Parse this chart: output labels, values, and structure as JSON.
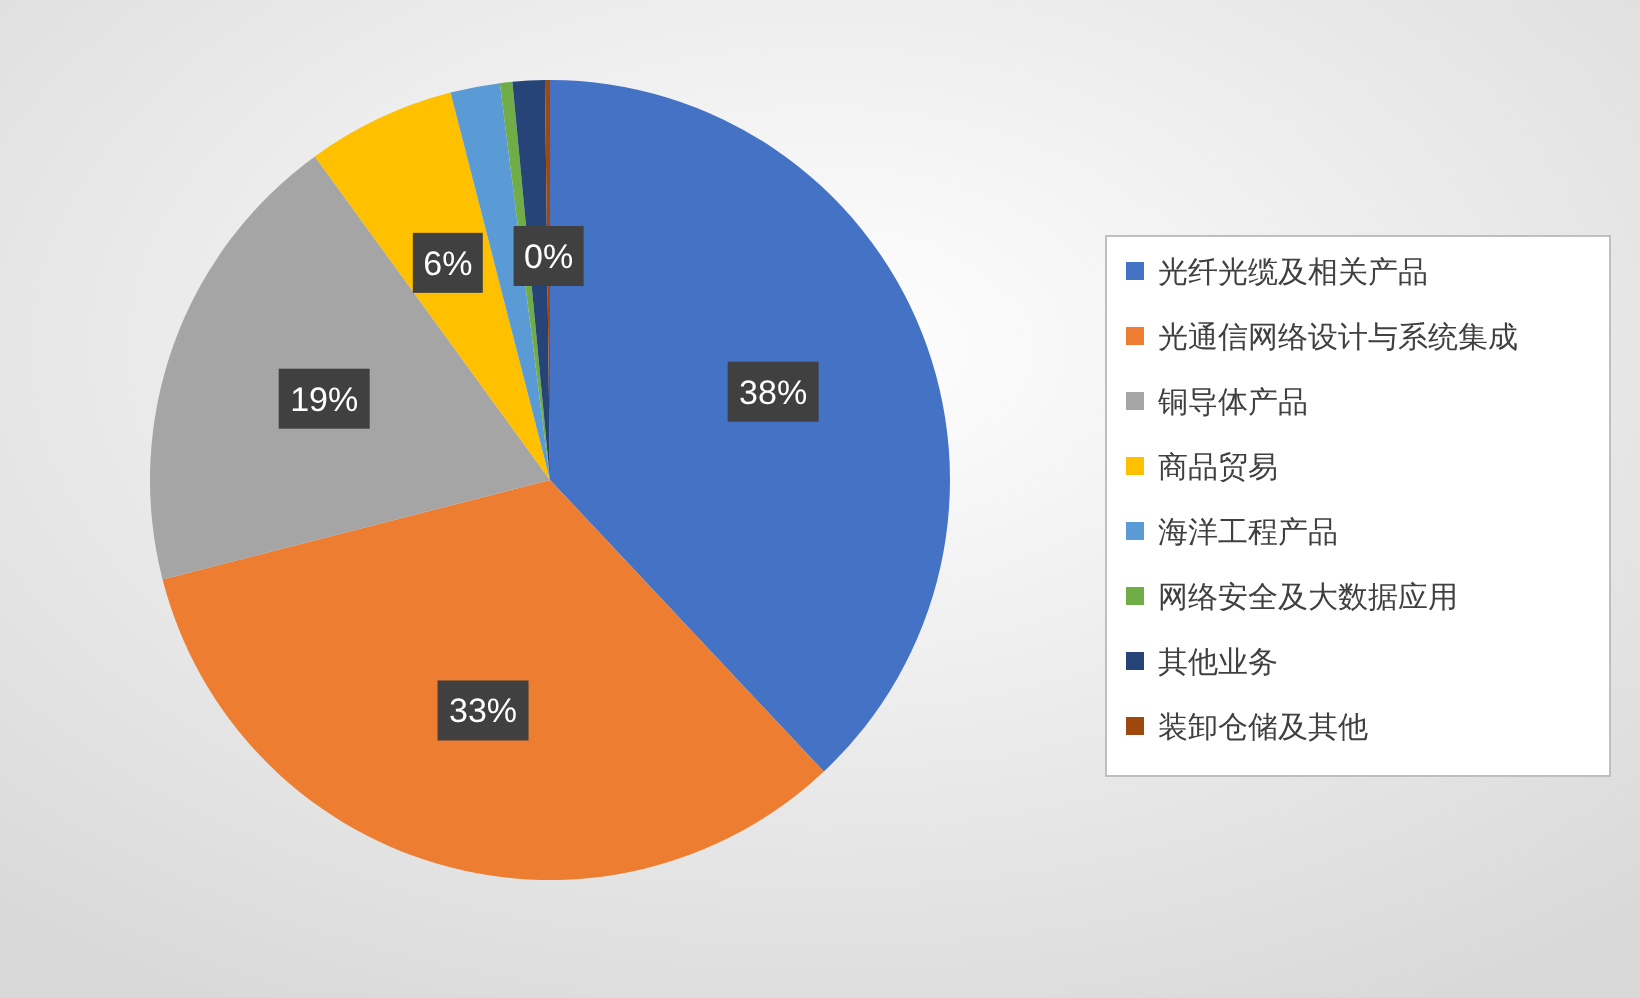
{
  "chart_data": {
    "type": "pie",
    "categories": [
      "光纤光缆及相关产品",
      "光通信网络设计与系统集成",
      "铜导体产品",
      "商品贸易",
      "海洋工程产品",
      "网络安全及大数据应用",
      "其他业务",
      "装卸仓储及其他"
    ],
    "values": [
      38,
      33,
      19,
      6,
      2,
      0.5,
      1.3,
      0.2
    ],
    "colors": [
      "#4472c4",
      "#ed7d31",
      "#a5a5a5",
      "#ffc000",
      "#5b9bd5",
      "#70ad47",
      "#264478",
      "#9e480e"
    ],
    "value_labels": [
      "38%",
      "33%",
      "19%",
      "6%",
      null,
      null,
      null,
      "0%"
    ],
    "legend": "right"
  }
}
